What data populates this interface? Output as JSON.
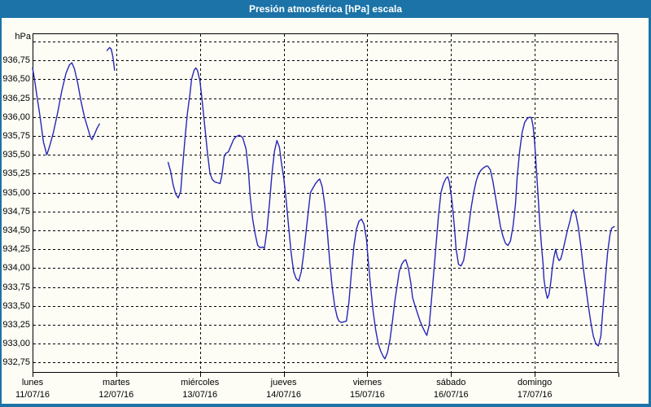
{
  "window": {
    "title": "Presión atmosférica [hPa] escala",
    "title_bar_color": "#1b73a7",
    "border_color": "#1b73a7",
    "background_color": "#fdfdf6"
  },
  "chart_data": {
    "type": "line",
    "title": "Presión atmosférica [hPa] escala",
    "unit_label": "hPa",
    "grid": {
      "style": "dashed",
      "color": "#000000",
      "on": true
    },
    "legend": "none",
    "x_axis": {
      "span_days": 7,
      "x_unit": "days from first tick (lunes 11/07/16 00:00)",
      "days": [
        {
          "label": "lunes",
          "date": "11/07/16"
        },
        {
          "label": "martes",
          "date": "12/07/16"
        },
        {
          "label": "miércoles",
          "date": "13/07/16"
        },
        {
          "label": "jueves",
          "date": "14/07/16"
        },
        {
          "label": "viernes",
          "date": "15/07/16"
        },
        {
          "label": "sábado",
          "date": "16/07/16"
        },
        {
          "label": "domingo",
          "date": "17/07/16"
        }
      ]
    },
    "y_axis": {
      "labeled_min": 932.75,
      "labeled_max": 936.75,
      "step": 0.25,
      "top_unlabeled_gridline": 937.0,
      "ylim": [
        932.6,
        937.1
      ],
      "decimal_separator": ",",
      "tick_values": [
        936.75,
        936.5,
        936.25,
        936.0,
        935.75,
        935.5,
        935.25,
        935.0,
        934.75,
        934.5,
        934.25,
        934.0,
        933.75,
        933.5,
        933.25,
        933.0,
        932.75
      ],
      "tick_labels": [
        "936,75",
        "936,50",
        "936,25",
        "936,00",
        "935,75",
        "935,50",
        "935,25",
        "935,00",
        "934,75",
        "934,50",
        "934,25",
        "934,00",
        "933,75",
        "933,50",
        "933,25",
        "933,00",
        "932,75"
      ]
    },
    "series": [
      {
        "name": "Presión atmosférica",
        "color": "#2626b8",
        "units": "hPa",
        "segments": [
          [
            [
              0,
              936.65
            ],
            [
              0.02,
              936.52
            ],
            [
              0.05,
              936.3
            ],
            [
              0.09,
              936.0
            ],
            [
              0.13,
              935.67
            ],
            [
              0.17,
              935.5
            ],
            [
              0.2,
              935.6
            ],
            [
              0.25,
              935.8
            ],
            [
              0.3,
              936.06
            ],
            [
              0.35,
              936.35
            ],
            [
              0.4,
              936.58
            ],
            [
              0.44,
              936.69
            ],
            [
              0.47,
              936.72
            ],
            [
              0.5,
              936.64
            ],
            [
              0.54,
              936.45
            ],
            [
              0.58,
              936.2
            ],
            [
              0.62,
              936.0
            ],
            [
              0.66,
              935.85
            ],
            [
              0.69,
              935.74
            ],
            [
              0.71,
              935.7
            ],
            [
              0.74,
              935.77
            ],
            [
              0.77,
              935.85
            ],
            [
              0.8,
              935.91
            ]
          ],
          [
            [
              0.89,
              936.88
            ],
            [
              0.92,
              936.92
            ],
            [
              0.94,
              936.9
            ],
            [
              0.96,
              936.8
            ],
            [
              0.98,
              936.62
            ]
          ],
          [
            [
              1.62,
              935.4
            ],
            [
              1.65,
              935.28
            ],
            [
              1.68,
              935.1
            ],
            [
              1.71,
              934.98
            ],
            [
              1.74,
              934.93
            ],
            [
              1.77,
              935.02
            ],
            [
              1.79,
              935.3
            ],
            [
              1.82,
              935.7
            ],
            [
              1.85,
              936.05
            ],
            [
              1.88,
              936.3
            ],
            [
              1.9,
              936.5
            ],
            [
              1.93,
              936.62
            ],
            [
              1.95,
              936.65
            ],
            [
              1.97,
              936.62
            ],
            [
              2.0,
              936.48
            ],
            [
              2.03,
              936.18
            ],
            [
              2.06,
              935.85
            ],
            [
              2.09,
              935.52
            ],
            [
              2.12,
              935.25
            ],
            [
              2.15,
              935.17
            ],
            [
              2.18,
              935.14
            ],
            [
              2.21,
              935.13
            ],
            [
              2.24,
              935.12
            ],
            [
              2.26,
              935.22
            ],
            [
              2.28,
              935.38
            ],
            [
              2.29,
              935.48
            ],
            [
              2.31,
              935.52
            ],
            [
              2.34,
              935.54
            ],
            [
              2.37,
              935.62
            ],
            [
              2.4,
              935.7
            ],
            [
              2.43,
              935.74
            ],
            [
              2.47,
              935.76
            ],
            [
              2.51,
              935.73
            ],
            [
              2.55,
              935.58
            ],
            [
              2.58,
              935.28
            ],
            [
              2.6,
              934.95
            ],
            [
              2.63,
              934.65
            ],
            [
              2.66,
              934.45
            ],
            [
              2.69,
              934.3
            ],
            [
              2.72,
              934.27
            ],
            [
              2.75,
              934.28
            ],
            [
              2.77,
              934.26
            ],
            [
              2.8,
              934.5
            ],
            [
              2.83,
              934.85
            ],
            [
              2.86,
              935.25
            ],
            [
              2.89,
              935.55
            ],
            [
              2.92,
              935.69
            ],
            [
              2.95,
              935.6
            ],
            [
              2.97,
              935.42
            ],
            [
              3.0,
              935.2
            ],
            [
              3.03,
              934.9
            ],
            [
              3.06,
              934.55
            ],
            [
              3.09,
              934.2
            ],
            [
              3.12,
              933.95
            ],
            [
              3.15,
              933.86
            ],
            [
              3.18,
              933.83
            ],
            [
              3.21,
              933.95
            ],
            [
              3.24,
              934.2
            ],
            [
              3.27,
              934.5
            ],
            [
              3.3,
              934.8
            ],
            [
              3.32,
              935.0
            ],
            [
              3.35,
              935.06
            ],
            [
              3.38,
              935.12
            ],
            [
              3.41,
              935.16
            ],
            [
              3.43,
              935.18
            ],
            [
              3.46,
              935.08
            ],
            [
              3.49,
              934.85
            ],
            [
              3.52,
              934.5
            ],
            [
              3.55,
              934.1
            ],
            [
              3.58,
              933.75
            ],
            [
              3.61,
              933.5
            ],
            [
              3.64,
              933.35
            ],
            [
              3.66,
              933.3
            ],
            [
              3.69,
              933.28
            ],
            [
              3.72,
              933.29
            ],
            [
              3.75,
              933.3
            ],
            [
              3.78,
              933.55
            ],
            [
              3.81,
              933.95
            ],
            [
              3.84,
              934.3
            ],
            [
              3.87,
              934.52
            ],
            [
              3.9,
              934.62
            ],
            [
              3.93,
              934.65
            ],
            [
              3.96,
              934.58
            ],
            [
              3.99,
              934.38
            ],
            [
              4.01,
              934.1
            ],
            [
              4.04,
              933.75
            ],
            [
              4.07,
              933.42
            ],
            [
              4.1,
              933.18
            ],
            [
              4.13,
              933.0
            ],
            [
              4.16,
              932.9
            ],
            [
              4.19,
              932.83
            ],
            [
              4.21,
              932.8
            ],
            [
              4.24,
              932.88
            ],
            [
              4.27,
              933.05
            ],
            [
              4.3,
              933.3
            ],
            [
              4.33,
              933.58
            ],
            [
              4.36,
              933.8
            ],
            [
              4.38,
              933.95
            ],
            [
              4.41,
              934.05
            ],
            [
              4.44,
              934.1
            ],
            [
              4.46,
              934.11
            ],
            [
              4.49,
              934.0
            ],
            [
              4.52,
              933.8
            ],
            [
              4.54,
              933.61
            ],
            [
              4.57,
              933.5
            ],
            [
              4.6,
              933.4
            ],
            [
              4.63,
              933.3
            ],
            [
              4.66,
              933.22
            ],
            [
              4.69,
              933.15
            ],
            [
              4.71,
              933.11
            ],
            [
              4.74,
              933.25
            ],
            [
              4.76,
              933.5
            ],
            [
              4.79,
              933.9
            ],
            [
              4.82,
              934.3
            ],
            [
              4.85,
              934.7
            ],
            [
              4.88,
              935.0
            ],
            [
              4.91,
              935.12
            ],
            [
              4.94,
              935.19
            ],
            [
              4.96,
              935.21
            ],
            [
              4.98,
              935.14
            ],
            [
              5.01,
              934.9
            ],
            [
              5.04,
              934.55
            ],
            [
              5.06,
              934.25
            ],
            [
              5.09,
              934.05
            ],
            [
              5.12,
              934.03
            ],
            [
              5.15,
              934.1
            ],
            [
              5.18,
              934.3
            ],
            [
              5.21,
              934.55
            ],
            [
              5.24,
              934.8
            ],
            [
              5.27,
              935.0
            ],
            [
              5.3,
              935.15
            ],
            [
              5.33,
              935.25
            ],
            [
              5.36,
              935.3
            ],
            [
              5.39,
              935.33
            ],
            [
              5.42,
              935.35
            ],
            [
              5.44,
              935.35
            ],
            [
              5.47,
              935.3
            ],
            [
              5.5,
              935.15
            ],
            [
              5.53,
              934.95
            ],
            [
              5.56,
              934.75
            ],
            [
              5.59,
              934.55
            ],
            [
              5.62,
              934.42
            ],
            [
              5.65,
              934.33
            ],
            [
              5.68,
              934.3
            ],
            [
              5.71,
              934.36
            ],
            [
              5.74,
              934.55
            ],
            [
              5.77,
              934.85
            ],
            [
              5.79,
              935.2
            ],
            [
              5.82,
              935.55
            ],
            [
              5.85,
              935.8
            ],
            [
              5.88,
              935.93
            ],
            [
              5.91,
              935.98
            ],
            [
              5.94,
              936.0
            ],
            [
              5.96,
              935.99
            ],
            [
              5.98,
              935.88
            ],
            [
              6.0,
              935.65
            ],
            [
              6.02,
              935.3
            ],
            [
              6.04,
              934.95
            ],
            [
              6.06,
              934.6
            ],
            [
              6.08,
              934.3
            ],
            [
              6.1,
              934.05
            ],
            [
              6.11,
              933.85
            ],
            [
              6.13,
              933.7
            ],
            [
              6.15,
              933.6
            ],
            [
              6.17,
              933.65
            ],
            [
              6.19,
              933.8
            ],
            [
              6.21,
              934.0
            ],
            [
              6.23,
              934.15
            ],
            [
              6.25,
              934.25
            ],
            [
              6.27,
              934.15
            ],
            [
              6.29,
              934.1
            ],
            [
              6.31,
              934.12
            ],
            [
              6.33,
              934.2
            ],
            [
              6.36,
              934.35
            ],
            [
              6.39,
              934.5
            ],
            [
              6.42,
              934.62
            ],
            [
              6.44,
              934.72
            ],
            [
              6.46,
              934.77
            ],
            [
              6.49,
              934.72
            ],
            [
              6.52,
              934.55
            ],
            [
              6.55,
              934.3
            ],
            [
              6.58,
              934.0
            ],
            [
              6.61,
              933.75
            ],
            [
              6.64,
              933.5
            ],
            [
              6.67,
              933.28
            ],
            [
              6.7,
              933.1
            ],
            [
              6.73,
              933.0
            ],
            [
              6.76,
              932.97
            ],
            [
              6.79,
              933.1
            ],
            [
              6.81,
              933.4
            ],
            [
              6.84,
              933.8
            ],
            [
              6.87,
              934.2
            ],
            [
              6.9,
              934.45
            ],
            [
              6.92,
              934.53
            ],
            [
              6.95,
              934.55
            ]
          ]
        ]
      }
    ]
  }
}
